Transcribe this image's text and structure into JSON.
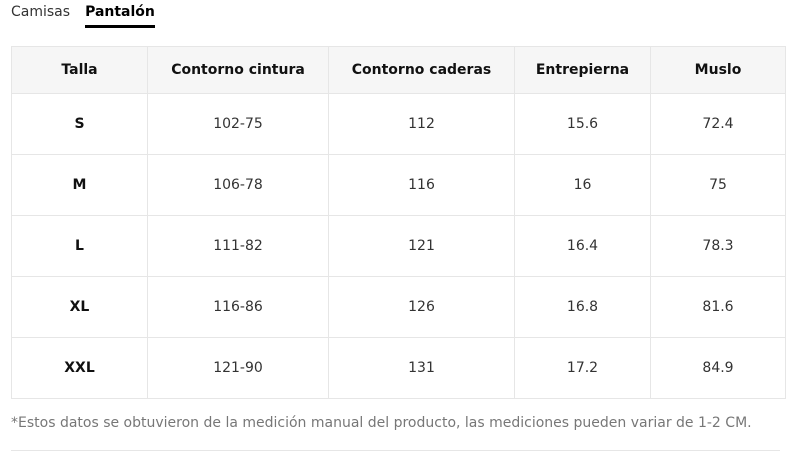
{
  "tabs": {
    "items": [
      "Camisas",
      "Pantalón"
    ],
    "active": 1
  },
  "table": {
    "headers": [
      "Talla",
      "Contorno cintura",
      "Contorno caderas",
      "Entrepierna",
      "Muslo"
    ],
    "rows": [
      [
        "S",
        "102-75",
        "112",
        "15.6",
        "72.4"
      ],
      [
        "M",
        "106-78",
        "116",
        "16",
        "75"
      ],
      [
        "L",
        "111-82",
        "121",
        "16.4",
        "78.3"
      ],
      [
        "XL",
        "116-86",
        "126",
        "16.8",
        "81.6"
      ],
      [
        "XXL",
        "121-90",
        "131",
        "17.2",
        "84.9"
      ]
    ]
  },
  "footnote": "*Estos datos se obtuvieron de la medición manual del producto, las mediciones pueden variar de 1-2 CM."
}
